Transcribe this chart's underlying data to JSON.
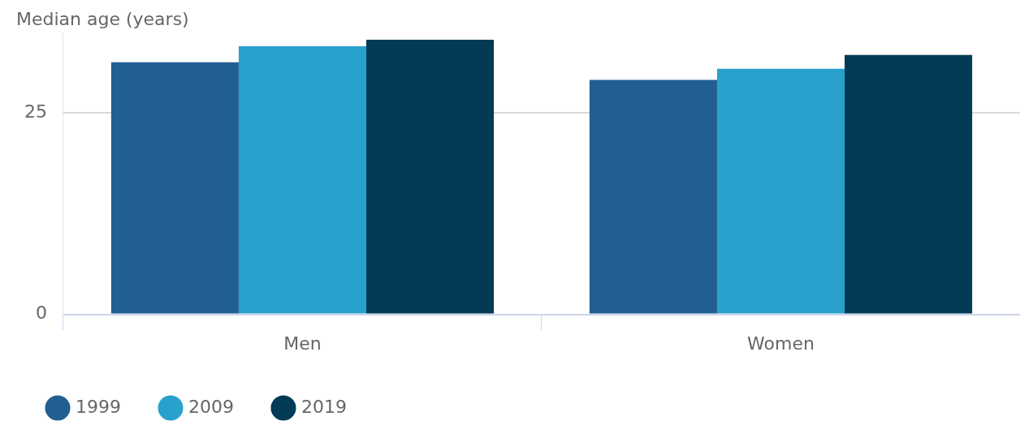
{
  "chart_data": {
    "type": "bar",
    "ylabel": "Median age (years)",
    "categories": [
      "Men",
      "Women"
    ],
    "series": [
      {
        "name": "1999",
        "color": "#215f93",
        "values": [
          31.3,
          29.1
        ]
      },
      {
        "name": "2009",
        "color": "#29a1cd",
        "values": [
          33.3,
          30.5
        ]
      },
      {
        "name": "2019",
        "color": "#033a55",
        "values": [
          34.1,
          32.2
        ]
      }
    ],
    "ylim": [
      0,
      35
    ],
    "yticks": [
      0,
      25
    ],
    "grid": "y",
    "legend": "bottom left"
  }
}
